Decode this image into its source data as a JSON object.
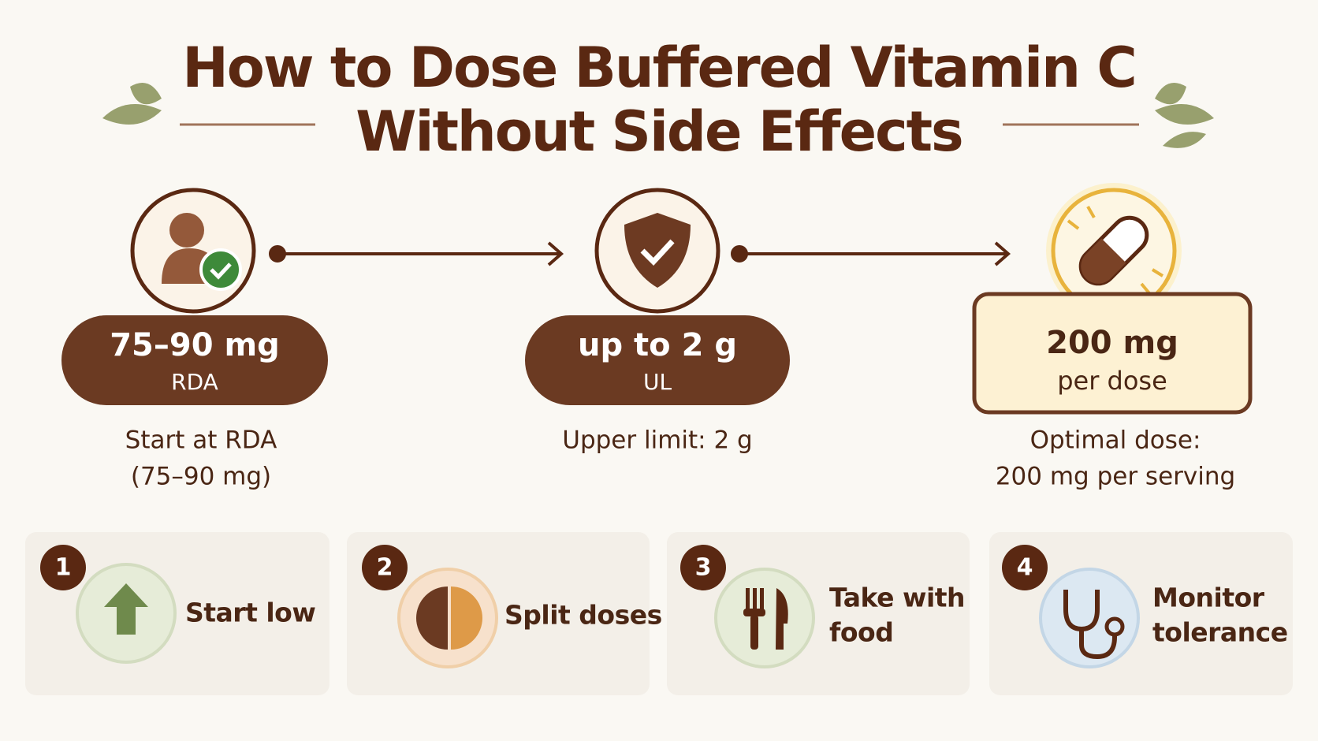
{
  "header": {
    "title_lines": [
      "How to Dose Buffered Vitamin C",
      "Without Side Effects"
    ]
  },
  "steps": [
    {
      "amount": "75–90 mg",
      "unit": "RDA",
      "caption_lines": [
        "Start at RDA",
        "(75–90 mg)"
      ]
    },
    {
      "amount": "up to 2 g",
      "unit": "UL",
      "caption_lines": [
        "Upper limit: 2 g"
      ]
    },
    {
      "amount": "200 mg",
      "unit": "per dose",
      "caption_lines": [
        "Optimal dose:",
        "200 mg per serving"
      ]
    }
  ],
  "tips": [
    {
      "number": "1",
      "label_lines": [
        "Start low"
      ]
    },
    {
      "number": "2",
      "label_lines": [
        "Split doses"
      ]
    },
    {
      "number": "3",
      "label_lines": [
        "Take with",
        "food"
      ]
    },
    {
      "number": "4",
      "label_lines": [
        "Monitor",
        "tolerance"
      ]
    }
  ]
}
